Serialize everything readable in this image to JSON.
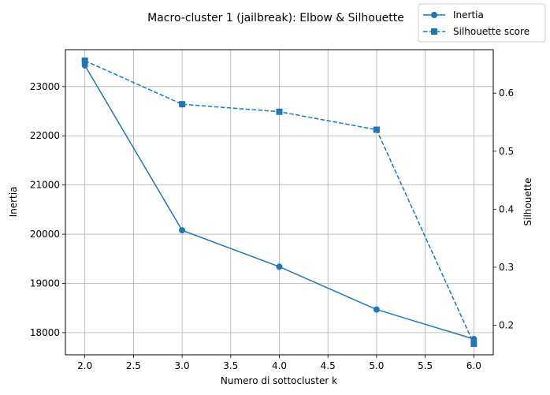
{
  "chart_data": {
    "type": "line",
    "title": "Macro-cluster 1 (jailbreak): Elbow & Silhouette",
    "xlabel": "Numero di sottocluster k",
    "ylabel_left": "Inertia",
    "ylabel_right": "Silhouette",
    "x": [
      2,
      3,
      4,
      5,
      6
    ],
    "xlim": [
      1.8,
      6.2
    ],
    "xticks": [
      "2.0",
      "2.5",
      "3.0",
      "3.5",
      "4.0",
      "4.5",
      "5.0",
      "5.5",
      "6.0"
    ],
    "ylim_left": [
      17550,
      23750
    ],
    "yticks_left": [
      "18000",
      "19000",
      "20000",
      "21000",
      "22000",
      "23000"
    ],
    "ylim_right": [
      0.149,
      0.675
    ],
    "yticks_right": [
      "0.2",
      "0.3",
      "0.4",
      "0.5",
      "0.6"
    ],
    "grid": true,
    "legend_position": "top-right",
    "series": [
      {
        "name": "Inertia",
        "axis": "left",
        "marker": "circle",
        "linestyle": "solid",
        "color": "#1f77b4",
        "values": [
          23430,
          20080,
          19340,
          18470,
          17870
        ]
      },
      {
        "name": "Silhouette score",
        "axis": "right",
        "marker": "square",
        "linestyle": "dashed",
        "color": "#1f77b4",
        "values": [
          0.656,
          0.581,
          0.568,
          0.537,
          0.168
        ]
      }
    ]
  }
}
